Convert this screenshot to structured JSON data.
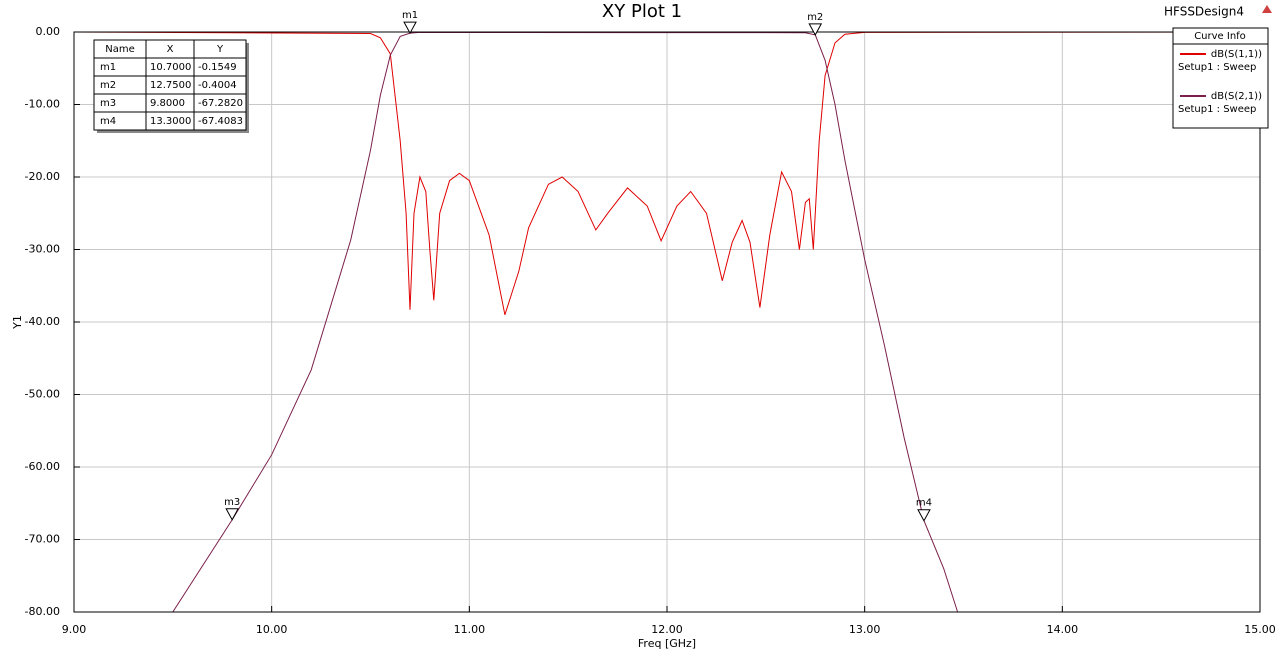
{
  "chart_data": {
    "type": "line",
    "title": "XY Plot 1",
    "design_name": "HFSSDesign4",
    "xlabel": "Freq [GHz]",
    "ylabel": "Y1",
    "xlim": [
      9,
      15
    ],
    "ylim": [
      -80,
      0
    ],
    "xticks": [
      {
        "value": 9,
        "label": "9.00"
      },
      {
        "value": 10,
        "label": "10.00"
      },
      {
        "value": 11,
        "label": "11.00"
      },
      {
        "value": 12,
        "label": "12.00"
      },
      {
        "value": 13,
        "label": "13.00"
      },
      {
        "value": 14,
        "label": "14.00"
      },
      {
        "value": 15,
        "label": "15.00"
      }
    ],
    "yticks": [
      {
        "value": 0,
        "label": "0.00"
      },
      {
        "value": -10,
        "label": "-10.00"
      },
      {
        "value": -20,
        "label": "-20.00"
      },
      {
        "value": -30,
        "label": "-30.00"
      },
      {
        "value": -40,
        "label": "-40.00"
      },
      {
        "value": -50,
        "label": "-50.00"
      },
      {
        "value": -60,
        "label": "-60.00"
      },
      {
        "value": -70,
        "label": "-70.00"
      },
      {
        "value": -80,
        "label": "-80.00"
      }
    ],
    "grid": true,
    "legend_title": "Curve Info",
    "legend_position": "upper right",
    "series": [
      {
        "name": "dB(S(1,1))",
        "setup": "Setup1 : Sweep",
        "color": "#e00000",
        "x": [
          9.0,
          10.5,
          10.55,
          10.6,
          10.65,
          10.68,
          10.7,
          10.72,
          10.75,
          10.78,
          10.8,
          10.82,
          10.85,
          10.9,
          10.95,
          11.0,
          11.1,
          11.18,
          11.25,
          11.3,
          11.4,
          11.47,
          11.55,
          11.64,
          11.7,
          11.8,
          11.9,
          11.97,
          12.05,
          12.12,
          12.2,
          12.28,
          12.33,
          12.38,
          12.42,
          12.47,
          12.52,
          12.58,
          12.63,
          12.67,
          12.7,
          12.72,
          12.74,
          12.77,
          12.8,
          12.85,
          12.9,
          13.0,
          15.0
        ],
        "values": [
          0,
          -0.2,
          -0.8,
          -3,
          -15,
          -25,
          -38.3,
          -25,
          -20,
          -22,
          -30,
          -37,
          -25,
          -20.5,
          -19.5,
          -20.5,
          -28,
          -39,
          -33,
          -27,
          -21,
          -20,
          -22,
          -27.3,
          -25,
          -21.5,
          -24,
          -28.8,
          -24,
          -22,
          -25,
          -34.3,
          -29,
          -26,
          -29,
          -38,
          -28,
          -19.3,
          -22,
          -30,
          -23.5,
          -23,
          -30,
          -15,
          -6,
          -1.5,
          -0.3,
          -0.05,
          0
        ]
      },
      {
        "name": "dB(S(2,1))",
        "setup": "Setup1 : Sweep",
        "color": "#7a1f4a",
        "x": [
          9.5,
          9.8,
          10.0,
          10.2,
          10.4,
          10.5,
          10.55,
          10.6,
          10.65,
          10.7,
          10.75,
          12.7,
          12.75,
          12.8,
          12.85,
          12.9,
          13.0,
          13.1,
          13.2,
          13.3,
          13.4,
          13.47
        ],
        "values": [
          -80,
          -67.3,
          -58.3,
          -46.6,
          -28.7,
          -16.3,
          -8.7,
          -3.2,
          -0.6,
          -0.15,
          -0.05,
          -0.1,
          -0.4,
          -3.9,
          -10,
          -17.7,
          -31.4,
          -43.2,
          -56,
          -67.4,
          -74,
          -80
        ]
      }
    ],
    "marker_table": {
      "columns": [
        "Name",
        "X",
        "Y"
      ]
    },
    "markers": [
      {
        "name": "m1",
        "x": 10.7,
        "y": -0.1549,
        "value_labels": [
          "10.7000",
          "-0.1549"
        ]
      },
      {
        "name": "m2",
        "x": 12.75,
        "y": -0.4004,
        "value_labels": [
          "12.7500",
          "-0.4004"
        ]
      },
      {
        "name": "m3",
        "x": 9.8,
        "y": -67.282,
        "value_labels": [
          "9.8000",
          "-67.2820"
        ]
      },
      {
        "name": "m4",
        "x": 13.3,
        "y": -67.4083,
        "value_labels": [
          "13.3000",
          "-67.4083"
        ]
      }
    ]
  }
}
